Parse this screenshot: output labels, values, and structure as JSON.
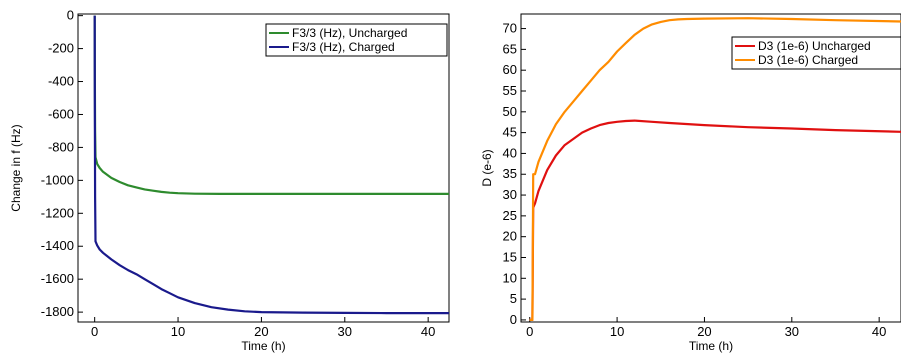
{
  "chart_data": [
    {
      "type": "line",
      "xlabel": "Time (h)",
      "ylabel": "Change in f (Hz)",
      "xlim": [
        -2,
        42.5
      ],
      "ylim": [
        -1860,
        10
      ],
      "x_ticks": [
        0,
        10,
        20,
        30,
        40
      ],
      "y_ticks": [
        0,
        -200,
        -400,
        -600,
        -800,
        -1000,
        -1200,
        -1400,
        -1600,
        -1800
      ],
      "grid": false,
      "legend_position": "top-right",
      "series": [
        {
          "name": "F3/3 (Hz), Uncharged",
          "color": "#2e8b2e",
          "points": [
            [
              0,
              0
            ],
            [
              0.02,
              -300
            ],
            [
              0.05,
              -700
            ],
            [
              0.1,
              -860
            ],
            [
              0.3,
              -900
            ],
            [
              0.6,
              -925
            ],
            [
              1,
              -948
            ],
            [
              2,
              -985
            ],
            [
              3,
              -1010
            ],
            [
              4,
              -1030
            ],
            [
              5,
              -1043
            ],
            [
              6,
              -1055
            ],
            [
              7,
              -1063
            ],
            [
              8,
              -1070
            ],
            [
              9,
              -1075
            ],
            [
              10,
              -1078
            ],
            [
              12,
              -1081
            ],
            [
              15,
              -1082
            ],
            [
              20,
              -1082
            ],
            [
              25,
              -1082
            ],
            [
              30,
              -1082
            ],
            [
              35,
              -1082
            ],
            [
              42.5,
              -1082
            ]
          ]
        },
        {
          "name": "F3/3 (Hz), Charged",
          "color": "#1a1a8c",
          "points": [
            [
              0,
              0
            ],
            [
              0.02,
              -500
            ],
            [
              0.05,
              -1100
            ],
            [
              0.1,
              -1370
            ],
            [
              0.3,
              -1395
            ],
            [
              0.6,
              -1420
            ],
            [
              1,
              -1440
            ],
            [
              2,
              -1480
            ],
            [
              3,
              -1515
            ],
            [
              4,
              -1545
            ],
            [
              5,
              -1570
            ],
            [
              6,
              -1600
            ],
            [
              7,
              -1630
            ],
            [
              8,
              -1660
            ],
            [
              9,
              -1685
            ],
            [
              10,
              -1710
            ],
            [
              12,
              -1745
            ],
            [
              14,
              -1770
            ],
            [
              16,
              -1785
            ],
            [
              18,
              -1795
            ],
            [
              20,
              -1800
            ],
            [
              25,
              -1803
            ],
            [
              30,
              -1805
            ],
            [
              35,
              -1806
            ],
            [
              42.5,
              -1806
            ]
          ]
        }
      ]
    },
    {
      "type": "line",
      "xlabel": "Time (h)",
      "ylabel": "D (e-6)",
      "xlim": [
        -1,
        42.5
      ],
      "ylim": [
        -0.5,
        73.5
      ],
      "x_ticks": [
        0,
        10,
        20,
        30,
        40
      ],
      "y_ticks": [
        0,
        5,
        10,
        15,
        20,
        25,
        30,
        35,
        40,
        45,
        50,
        55,
        60,
        65,
        70
      ],
      "grid": false,
      "legend_position": "top-right",
      "series": [
        {
          "name": "D3 (1e-6) Uncharged",
          "color": "#e01010",
          "points": [
            [
              0,
              0
            ],
            [
              0.3,
              0
            ],
            [
              0.4,
              27
            ],
            [
              0.6,
              28
            ],
            [
              1,
              31
            ],
            [
              2,
              36
            ],
            [
              3,
              39.5
            ],
            [
              4,
              42
            ],
            [
              5,
              43.5
            ],
            [
              6,
              45
            ],
            [
              7,
              46
            ],
            [
              8,
              46.8
            ],
            [
              9,
              47.3
            ],
            [
              10,
              47.6
            ],
            [
              11,
              47.8
            ],
            [
              12,
              47.9
            ],
            [
              14,
              47.6
            ],
            [
              16,
              47.3
            ],
            [
              20,
              46.8
            ],
            [
              25,
              46.3
            ],
            [
              30,
              46
            ],
            [
              35,
              45.6
            ],
            [
              42.5,
              45.2
            ]
          ]
        },
        {
          "name": "D3 (1e-6) Charged",
          "color": "#ff8c00",
          "points": [
            [
              0,
              0
            ],
            [
              0.3,
              0
            ],
            [
              0.4,
              35
            ],
            [
              0.6,
              35
            ],
            [
              1,
              38
            ],
            [
              2,
              43
            ],
            [
              3,
              47
            ],
            [
              4,
              50
            ],
            [
              5,
              52.5
            ],
            [
              6,
              55
            ],
            [
              7,
              57.5
            ],
            [
              8,
              60
            ],
            [
              9,
              62
            ],
            [
              10,
              64.5
            ],
            [
              11,
              66.5
            ],
            [
              12,
              68.5
            ],
            [
              13,
              70
            ],
            [
              14,
              71
            ],
            [
              15,
              71.6
            ],
            [
              16,
              72
            ],
            [
              17,
              72.2
            ],
            [
              18,
              72.3
            ],
            [
              20,
              72.4
            ],
            [
              25,
              72.5
            ],
            [
              30,
              72.3
            ],
            [
              35,
              72
            ],
            [
              42.5,
              71.7
            ]
          ]
        }
      ]
    }
  ]
}
